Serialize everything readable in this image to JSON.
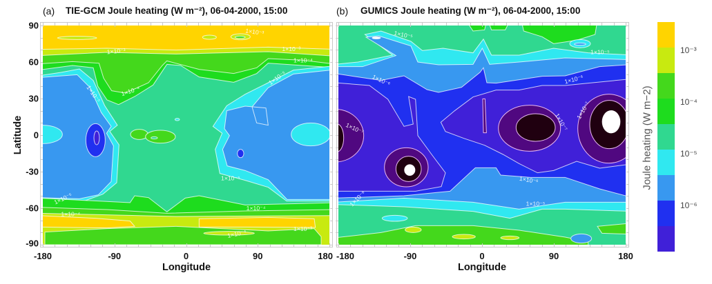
{
  "colors": {
    "c1e-3_plus": "#ffd400",
    "c5e-4": "#c8ea10",
    "c2e-4": "#44d81c",
    "c1e-4": "#1edc1e",
    "c3e-5": "#30d890",
    "c1e-5": "#30e8f0",
    "c3e-6": "#3898f0",
    "c1e-6": "#2030f0",
    "c3e-7": "#4020d8",
    "c1e-7": "#500880",
    "c3e-8": "#200010",
    "min": "#ffffff"
  },
  "panels": {
    "a": {
      "letter": "(a)",
      "title": "TIE-GCM Joule heating (W m⁻²), 06-04-2000, 15:00",
      "xlabel": "Longitude",
      "ylabel": "Latitude",
      "xticks": [
        "-180",
        "-90",
        "0",
        "90",
        "180"
      ],
      "yticks": [
        "90",
        "60",
        "30",
        "0",
        "-30",
        "-60",
        "-90"
      ],
      "contour_labels": [
        "1×10⁻³",
        "1×10⁻³",
        "1×10⁻³",
        "1×10⁻⁴",
        "1×10⁻⁵",
        "1×10⁻⁴",
        "1×10⁻⁵",
        "1×10⁻⁵",
        "1×10⁻⁵",
        "1×10⁻⁴",
        "1×10⁻⁴",
        "1×10⁻⁴",
        "1×10⁻³"
      ]
    },
    "b": {
      "letter": "(b)",
      "title": "GUMICS Joule heating (W m⁻²), 06-04-2000, 15:00",
      "xlabel": "Longitude",
      "xticks": [
        "-180",
        "-90",
        "0",
        "90",
        "180"
      ],
      "contour_labels": [
        "1×10⁻⁵",
        "1×10⁻⁵",
        "1×10⁻⁶",
        "1×10⁻⁶",
        "1×10⁻⁷",
        "1×10⁻⁷",
        "1×10⁻⁷",
        "1×10⁻⁶",
        "1×10⁻⁶",
        "1×10⁻⁵"
      ]
    }
  },
  "colorbar": {
    "label": "Joule heating (W m−2)",
    "ticks": [
      "10⁻³",
      "10⁻⁴",
      "10⁻⁵",
      "10⁻⁶"
    ],
    "band_colors": [
      "#ffd400",
      "#c8ea10",
      "#44d81c",
      "#1edc1e",
      "#30d890",
      "#30e8f0",
      "#3898f0",
      "#2030f0",
      "#4020d8"
    ]
  },
  "chart_data": [
    {
      "type": "heatmap",
      "title": "TIE-GCM Joule heating (W m⁻²), 06-04-2000, 15:00",
      "xlabel": "Longitude",
      "ylabel": "Latitude",
      "xlim": [
        -180,
        180
      ],
      "ylim": [
        -90,
        90
      ],
      "xticks": [
        -180,
        -90,
        0,
        90,
        180
      ],
      "yticks": [
        90,
        60,
        30,
        0,
        -30,
        -60,
        -90
      ],
      "colorscale": "log",
      "contour_levels": [
        1e-06,
        1e-05,
        0.0001,
        0.001
      ],
      "description_values": {
        "high_latitudes": ">1e-3",
        "mid_equatorial_atlantic": "~3e-5",
        "pacific_lows": "~1e-6 to 3e-6"
      }
    },
    {
      "type": "heatmap",
      "title": "GUMICS Joule heating (W m⁻²), 06-04-2000, 15:00",
      "xlabel": "Longitude",
      "xlim": [
        -180,
        180
      ],
      "ylim": [
        -90,
        90
      ],
      "xticks": [
        -180,
        -90,
        0,
        90,
        180
      ],
      "colorscale": "log",
      "contour_levels": [
        1e-07,
        1e-06,
        1e-05
      ],
      "description_values": {
        "high_latitudes": "~3e-5 to 2e-4",
        "equatorial_minima": "<1e-7"
      }
    }
  ]
}
